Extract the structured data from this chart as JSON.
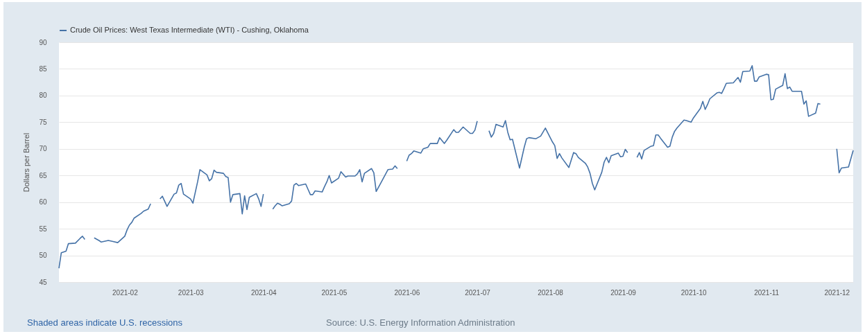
{
  "chart_data": {
    "type": "line",
    "ylabel": "Dollars per Barrel",
    "legend": "top left",
    "grid": "y",
    "xlim": [
      "2021-01-04",
      "2021-12-08"
    ],
    "xticks": [
      "2021-02",
      "2021-03",
      "2021-04",
      "2021-05",
      "2021-06",
      "2021-07",
      "2021-08",
      "2021-09",
      "2021-10",
      "2021-11",
      "2021-12"
    ],
    "ylim": [
      45,
      90
    ],
    "yticks": [
      45,
      50,
      55,
      60,
      65,
      70,
      75,
      80,
      85,
      90
    ],
    "annotations": [
      "Shaded areas indicate U.S. recessions",
      "Source: U.S. Energy Information Administration"
    ],
    "series": [
      {
        "name": "Crude Oil Prices: West Texas Intermediate (WTI) - Cushing, Oklahoma",
        "color": "#4572a7",
        "x": [
          "2021-01-04",
          "2021-01-05",
          "2021-01-07",
          "2021-01-08",
          "2021-01-11",
          "2021-01-13",
          "2021-01-14",
          "2021-01-15",
          "2021-01-18",
          "2021-01-19",
          "2021-01-21",
          "2021-01-22",
          "2021-01-25",
          "2021-01-27",
          "2021-01-29",
          "2021-02-01",
          "2021-02-02",
          "2021-02-03",
          "2021-02-04",
          "2021-02-05",
          "2021-02-08",
          "2021-02-09",
          "2021-02-11",
          "2021-02-12",
          "2021-02-15",
          "2021-02-16",
          "2021-02-17",
          "2021-02-19",
          "2021-02-22",
          "2021-02-23",
          "2021-02-24",
          "2021-02-25",
          "2021-02-26",
          "2021-03-01",
          "2021-03-02",
          "2021-03-04",
          "2021-03-05",
          "2021-03-08",
          "2021-03-09",
          "2021-03-10",
          "2021-03-11",
          "2021-03-12",
          "2021-03-15",
          "2021-03-16",
          "2021-03-17",
          "2021-03-18",
          "2021-03-19",
          "2021-03-22",
          "2021-03-23",
          "2021-03-24",
          "2021-03-25",
          "2021-03-26",
          "2021-03-29",
          "2021-03-30",
          "2021-03-31",
          "2021-04-01",
          "2021-04-02",
          "2021-04-05",
          "2021-04-06",
          "2021-04-07",
          "2021-04-08",
          "2021-04-09",
          "2021-04-12",
          "2021-04-13",
          "2021-04-14",
          "2021-04-15",
          "2021-04-16",
          "2021-04-19",
          "2021-04-20",
          "2021-04-21",
          "2021-04-22",
          "2021-04-23",
          "2021-04-26",
          "2021-04-27",
          "2021-04-28",
          "2021-04-29",
          "2021-04-30",
          "2021-05-03",
          "2021-05-04",
          "2021-05-06",
          "2021-05-07",
          "2021-05-10",
          "2021-05-11",
          "2021-05-12",
          "2021-05-13",
          "2021-05-14",
          "2021-05-17",
          "2021-05-18",
          "2021-05-19",
          "2021-05-21",
          "2021-05-24",
          "2021-05-26",
          "2021-05-27",
          "2021-05-28",
          "2021-05-31",
          "2021-06-01",
          "2021-06-02",
          "2021-06-03",
          "2021-06-04",
          "2021-06-07",
          "2021-06-08",
          "2021-06-10",
          "2021-06-11",
          "2021-06-14",
          "2021-06-15",
          "2021-06-17",
          "2021-06-18",
          "2021-06-21",
          "2021-06-22",
          "2021-06-23",
          "2021-06-25",
          "2021-06-28",
          "2021-06-29",
          "2021-06-30",
          "2021-07-01",
          "2021-07-02",
          "2021-07-06",
          "2021-07-07",
          "2021-07-08",
          "2021-07-09",
          "2021-07-12",
          "2021-07-13",
          "2021-07-14",
          "2021-07-15",
          "2021-07-16",
          "2021-07-19",
          "2021-07-21",
          "2021-07-22",
          "2021-07-23",
          "2021-07-26",
          "2021-07-28",
          "2021-07-30",
          "2021-08-02",
          "2021-08-03",
          "2021-08-04",
          "2021-08-05",
          "2021-08-06",
          "2021-08-09",
          "2021-08-11",
          "2021-08-12",
          "2021-08-13",
          "2021-08-16",
          "2021-08-17",
          "2021-08-18",
          "2021-08-19",
          "2021-08-20",
          "2021-08-23",
          "2021-08-24",
          "2021-08-25",
          "2021-08-26",
          "2021-08-27",
          "2021-08-30",
          "2021-08-31",
          "2021-09-01",
          "2021-09-02",
          "2021-09-03",
          "2021-09-06",
          "2021-09-07",
          "2021-09-08",
          "2021-09-09",
          "2021-09-10",
          "2021-09-13",
          "2021-09-14",
          "2021-09-15",
          "2021-09-16",
          "2021-09-17",
          "2021-09-20",
          "2021-09-21",
          "2021-09-22",
          "2021-09-23",
          "2021-09-24",
          "2021-09-27",
          "2021-09-28",
          "2021-09-30",
          "2021-10-01",
          "2021-10-04",
          "2021-10-05",
          "2021-10-06",
          "2021-10-07",
          "2021-10-08",
          "2021-10-11",
          "2021-10-12",
          "2021-10-13",
          "2021-10-14",
          "2021-10-15",
          "2021-10-18",
          "2021-10-19",
          "2021-10-20",
          "2021-10-21",
          "2021-10-22",
          "2021-10-25",
          "2021-10-26",
          "2021-10-27",
          "2021-10-28",
          "2021-10-29",
          "2021-11-01",
          "2021-11-02",
          "2021-11-03",
          "2021-11-04",
          "2021-11-05",
          "2021-11-08",
          "2021-11-09",
          "2021-11-10",
          "2021-11-11",
          "2021-11-12",
          "2021-11-15",
          "2021-11-16",
          "2021-11-17",
          "2021-11-18",
          "2021-11-19",
          "2021-11-22",
          "2021-11-23",
          "2021-11-24",
          "2021-11-25",
          "2021-12-01",
          "2021-12-02",
          "2021-12-03",
          "2021-12-06",
          "2021-12-08"
        ],
        "values": [
          47.6,
          50.5,
          50.8,
          52.2,
          52.3,
          53.2,
          53.6,
          53.0,
          null,
          53.3,
          52.8,
          52.5,
          52.8,
          52.6,
          52.4,
          53.6,
          54.8,
          55.7,
          56.2,
          57.0,
          57.9,
          58.3,
          58.7,
          59.7,
          null,
          60.6,
          61.1,
          59.2,
          61.5,
          61.7,
          63.2,
          63.5,
          61.5,
          60.6,
          59.8,
          63.8,
          66.1,
          65.1,
          64.0,
          64.4,
          66.0,
          65.6,
          65.4,
          64.8,
          64.6,
          60.0,
          61.4,
          61.6,
          57.8,
          61.2,
          58.6,
          60.9,
          61.6,
          60.6,
          59.2,
          61.5,
          null,
          58.7,
          59.3,
          59.8,
          59.6,
          59.3,
          59.7,
          60.2,
          63.2,
          63.5,
          63.1,
          63.4,
          62.4,
          61.4,
          61.4,
          62.1,
          61.9,
          62.9,
          63.8,
          65.0,
          63.6,
          64.5,
          65.7,
          64.7,
          64.9,
          64.9,
          65.3,
          66.1,
          63.8,
          65.4,
          66.3,
          65.5,
          62.0,
          63.6,
          66.1,
          66.2,
          66.8,
          66.3,
          null,
          67.7,
          68.8,
          69.1,
          69.6,
          69.2,
          70.0,
          70.3,
          71.0,
          71.0,
          72.1,
          71.0,
          71.6,
          73.6,
          73.1,
          73.1,
          74.1,
          72.9,
          72.9,
          73.5,
          75.2,
          null,
          73.4,
          72.2,
          72.9,
          74.6,
          74.1,
          75.3,
          73.1,
          71.7,
          71.8,
          66.4,
          70.3,
          71.9,
          72.1,
          71.9,
          72.4,
          73.9,
          71.3,
          70.6,
          68.2,
          69.1,
          68.3,
          66.5,
          69.3,
          69.1,
          68.4,
          67.3,
          66.6,
          65.4,
          63.5,
          62.3,
          65.6,
          67.5,
          68.4,
          67.4,
          68.7,
          69.2,
          68.5,
          68.6,
          69.9,
          69.3,
          null,
          68.4,
          69.3,
          68.1,
          69.7,
          70.5,
          70.6,
          72.6,
          72.6,
          72.0,
          70.3,
          70.5,
          72.2,
          73.3,
          73.9,
          75.4,
          75.3,
          75.0,
          75.8,
          77.6,
          78.9,
          77.4,
          78.3,
          79.4,
          80.5,
          80.6,
          80.4,
          81.3,
          82.3,
          82.4,
          82.9,
          83.4,
          82.5,
          84.5,
          84.6,
          85.6,
          82.7,
          82.7,
          83.5,
          84.0,
          83.9,
          79.2,
          79.3,
          81.2,
          81.9,
          84.1,
          81.3,
          81.6,
          80.8,
          80.8,
          80.8,
          78.4,
          79.0,
          76.1,
          76.7,
          78.5,
          78.4,
          null,
          70.0,
          65.5,
          66.4,
          66.6,
          69.7
        ]
      }
    ]
  }
}
